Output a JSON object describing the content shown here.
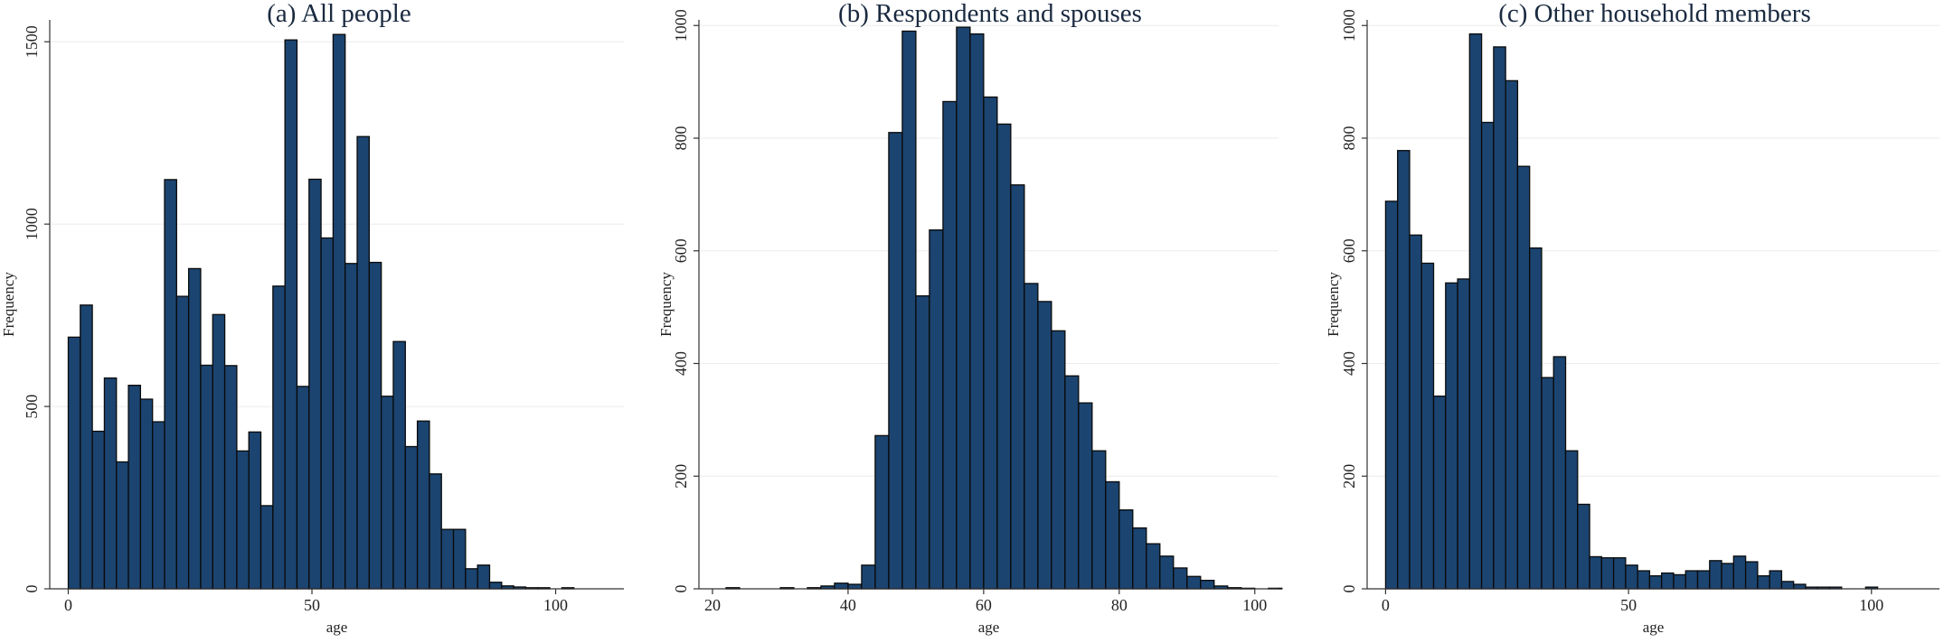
{
  "chart_data": [
    {
      "type": "bar",
      "title": "(a) All people",
      "xlabel": "age",
      "ylabel": "Frequency",
      "xlim": [
        -3.8,
        114
      ],
      "ylim": [
        0,
        1560
      ],
      "xticks": [
        0,
        50,
        100
      ],
      "yticks": [
        0,
        500,
        1000,
        1500
      ],
      "grid": true,
      "bin_width": 2.47,
      "bins_start": 0,
      "values": [
        690,
        778,
        432,
        578,
        348,
        558,
        520,
        458,
        1122,
        802,
        878,
        613,
        752,
        612,
        378,
        430,
        228,
        830,
        1505,
        555,
        1123,
        962,
        1520,
        892,
        1240,
        895,
        528,
        678,
        390,
        460,
        315,
        163,
        163,
        55,
        65,
        18,
        8,
        5,
        3,
        3,
        0,
        3
      ]
    },
    {
      "type": "bar",
      "title": "(b) Respondents and spouses",
      "xlabel": "age",
      "ylabel": "Frequency",
      "xlim": [
        18,
        103.5
      ],
      "ylim": [
        0,
        1010
      ],
      "xticks": [
        20,
        40,
        60,
        80,
        100
      ],
      "yticks": [
        0,
        200,
        400,
        600,
        800,
        1000
      ],
      "grid": true,
      "bin_width": 2.0,
      "bins_start": 20,
      "values": [
        0,
        2,
        0,
        0,
        0,
        2,
        0,
        2,
        5,
        10,
        8,
        42,
        272,
        810,
        990,
        520,
        637,
        865,
        997,
        985,
        873,
        825,
        717,
        542,
        510,
        458,
        378,
        330,
        245,
        190,
        140,
        108,
        80,
        58,
        37,
        22,
        15,
        5,
        2,
        1,
        0,
        1
      ]
    },
    {
      "type": "bar",
      "title": "(c) Other household members",
      "xlabel": "age",
      "ylabel": "Frequency",
      "xlim": [
        -3.8,
        114
      ],
      "ylim": [
        0,
        1010
      ],
      "xticks": [
        0,
        50,
        100
      ],
      "yticks": [
        0,
        200,
        400,
        600,
        800,
        1000
      ],
      "grid": true,
      "bin_width": 2.47,
      "bins_start": 0,
      "values": [
        688,
        778,
        628,
        578,
        342,
        543,
        550,
        985,
        828,
        962,
        902,
        750,
        605,
        375,
        412,
        245,
        150,
        57,
        55,
        55,
        42,
        32,
        23,
        28,
        25,
        32,
        32,
        50,
        45,
        58,
        48,
        23,
        32,
        13,
        8,
        3,
        3,
        3,
        0,
        0,
        3
      ]
    }
  ]
}
